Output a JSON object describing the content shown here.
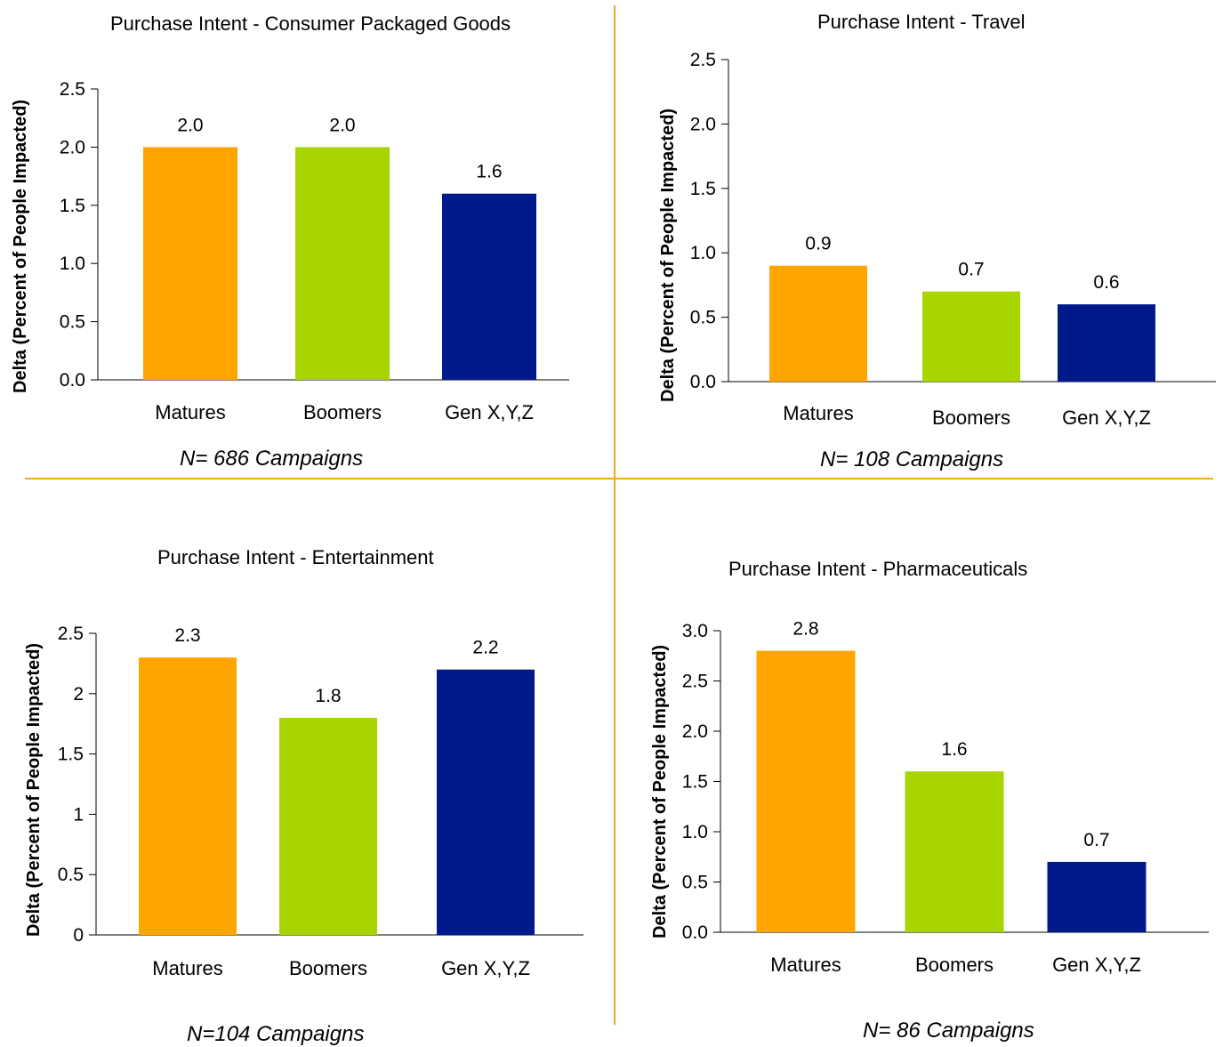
{
  "colors": {
    "divider": "#f5a623",
    "matures": "#ffa500",
    "boomers": "#a8d400",
    "genxyz": "#001a8c"
  },
  "chart_data": [
    {
      "type": "bar",
      "title": "Purchase Intent  - Consumer Packaged Goods",
      "ylabel": "Delta (Percent of People Impacted)",
      "xlabel": "",
      "categories": [
        "Matures",
        "Boomers",
        "Gen X,Y,Z"
      ],
      "values": [
        2.0,
        2.0,
        1.6
      ],
      "value_labels": [
        "2.0",
        "2.0",
        "1.6"
      ],
      "ylim": [
        0,
        2.5
      ],
      "yticks": [
        0,
        0.5,
        1.0,
        1.5,
        2.0,
        2.5
      ],
      "ytick_labels": [
        "0.0",
        "0.5",
        "1.0",
        "1.5",
        "2.0",
        "2.5"
      ],
      "footnote": "N= 686 Campaigns",
      "grid": false
    },
    {
      "type": "bar",
      "title": "Purchase Intent  - Travel",
      "ylabel": "Delta (Percent of People Impacted)",
      "xlabel": "",
      "categories": [
        "Matures",
        "Boomers",
        "Gen X,Y,Z"
      ],
      "values": [
        0.9,
        0.7,
        0.6
      ],
      "value_labels": [
        "0.9",
        "0.7",
        "0.6"
      ],
      "ylim": [
        0,
        2.5
      ],
      "yticks": [
        0,
        0.5,
        1.0,
        1.5,
        2.0,
        2.5
      ],
      "ytick_labels": [
        "0.0",
        "0.5",
        "1.0",
        "1.5",
        "2.0",
        "2.5"
      ],
      "footnote": "N= 108 Campaigns",
      "grid": false
    },
    {
      "type": "bar",
      "title": "Purchase Intent  - Entertainment",
      "ylabel": "Delta (Percent of People Impacted)",
      "xlabel": "",
      "categories": [
        "Matures",
        "Boomers",
        "Gen X,Y,Z"
      ],
      "values": [
        2.3,
        1.8,
        2.2
      ],
      "value_labels": [
        "2.3",
        "1.8",
        "2.2"
      ],
      "ylim": [
        0,
        2.5
      ],
      "yticks": [
        0,
        0.5,
        1,
        1.5,
        2,
        2.5
      ],
      "ytick_labels": [
        "0",
        "0.5",
        "1",
        "1.5",
        "2",
        "2.5"
      ],
      "footnote": "N=104 Campaigns",
      "grid": false
    },
    {
      "type": "bar",
      "title": "Purchase Intent  - Pharmaceuticals",
      "ylabel": "Delta (Percent of People Impacted)",
      "xlabel": "",
      "categories": [
        "Matures",
        "Boomers",
        "Gen X,Y,Z"
      ],
      "values": [
        2.8,
        1.6,
        0.7
      ],
      "value_labels": [
        "2.8",
        "1.6",
        "0.7"
      ],
      "ylim": [
        0,
        3.0
      ],
      "yticks": [
        0,
        0.5,
        1.0,
        1.5,
        2.0,
        2.5,
        3.0
      ],
      "ytick_labels": [
        "0.0",
        "0.5",
        "1.0",
        "1.5",
        "2.0",
        "2.5",
        "3.0"
      ],
      "footnote": "N= 86 Campaigns",
      "grid": false
    }
  ]
}
